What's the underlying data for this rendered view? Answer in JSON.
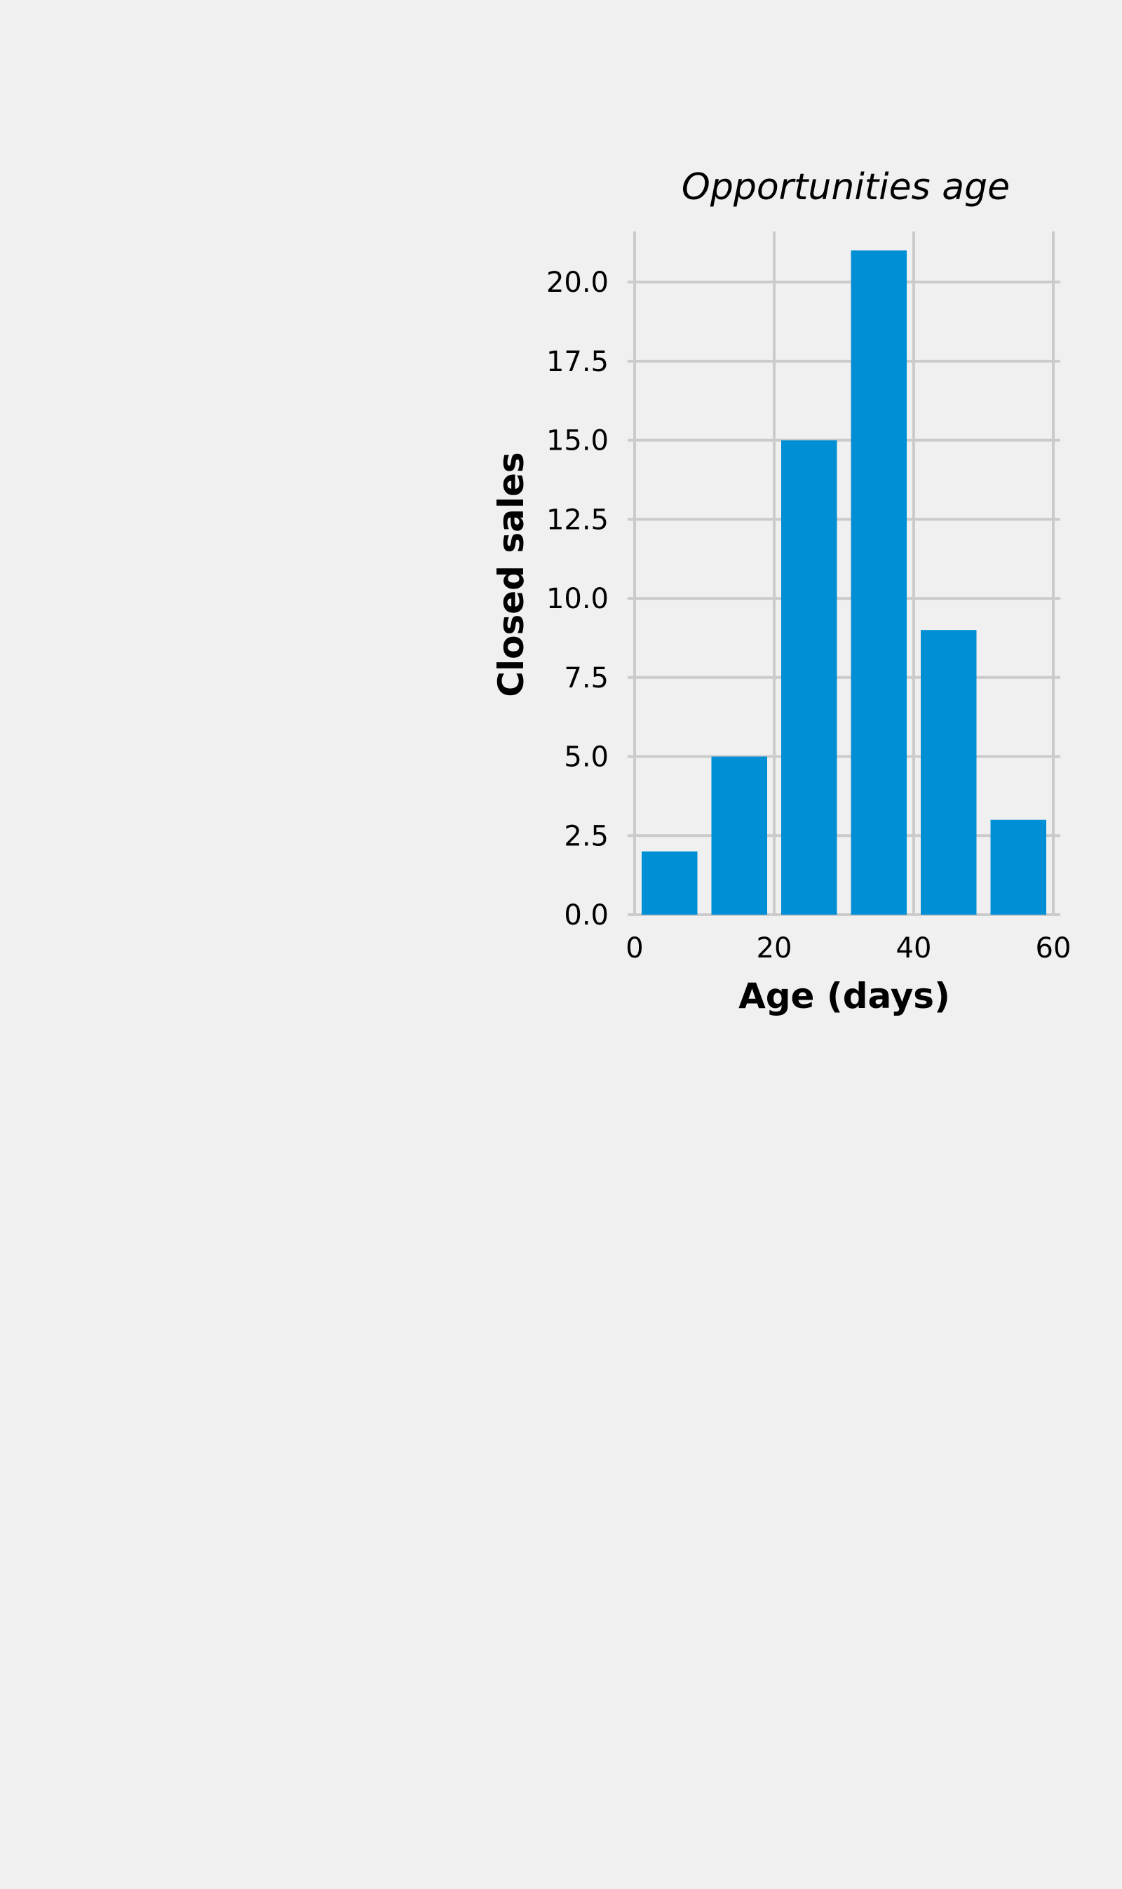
{
  "chart_data": {
    "type": "bar",
    "title": "Opportunities age",
    "xlabel": "Age (days)",
    "ylabel": "Closed sales",
    "x_bin_edges": [
      0,
      10,
      20,
      30,
      40,
      50,
      60
    ],
    "values": [
      2,
      5,
      15,
      21,
      9,
      3
    ],
    "xlim": [
      0,
      60
    ],
    "ylim": [
      0,
      21.6
    ],
    "x_ticks": [
      0,
      20,
      40,
      60
    ],
    "x_tick_labels": [
      "0",
      "20",
      "40",
      "60"
    ],
    "y_ticks": [
      0,
      2.5,
      5,
      7.5,
      10,
      12.5,
      15,
      17.5,
      20
    ],
    "y_tick_labels": [
      "0.0",
      "2.5",
      "5.0",
      "7.5",
      "10.0",
      "12.5",
      "15.0",
      "17.5",
      "20.0"
    ],
    "grid": true,
    "bar_color": "#008fd5",
    "grid_color": "#cbcbcb",
    "background": "#f0f0f0"
  }
}
